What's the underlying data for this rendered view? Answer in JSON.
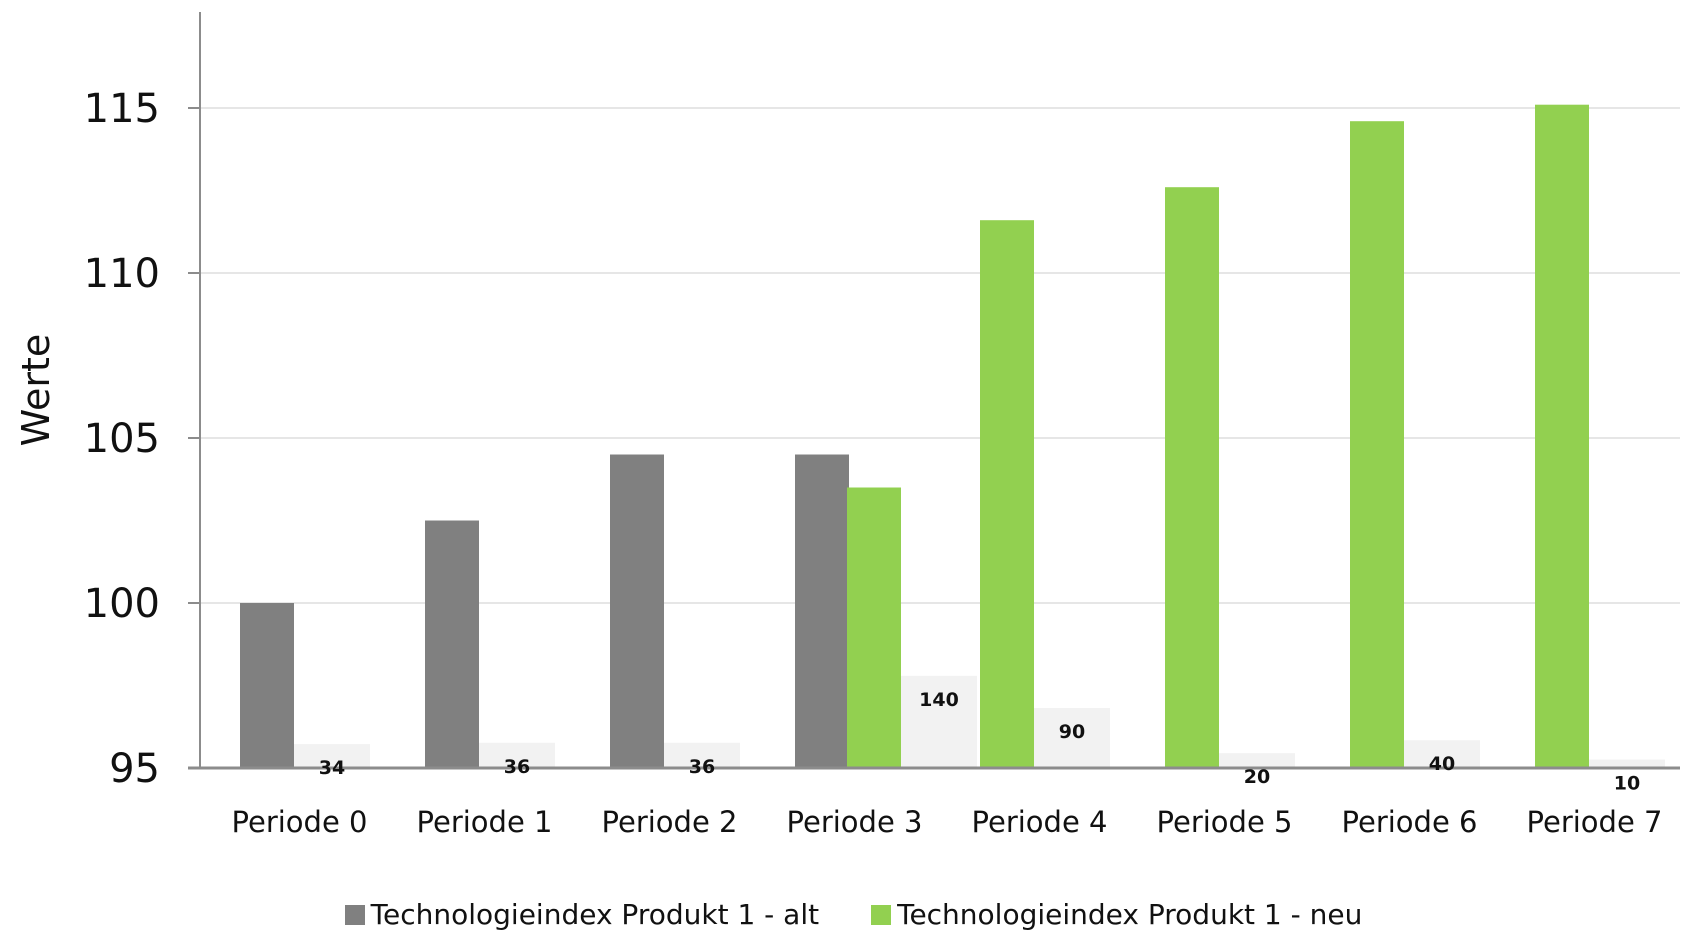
{
  "chart_data": {
    "type": "bar",
    "title": "",
    "xlabel": "",
    "ylabel": "Werte",
    "ylim": [
      95,
      117
    ],
    "yticks": [
      95,
      100,
      105,
      110,
      115
    ],
    "grid": true,
    "legend_position": "bottom",
    "categories": [
      "Periode 0",
      "Periode 1",
      "Periode 2",
      "Periode 3",
      "Periode 4",
      "Periode 5",
      "Periode 6",
      "Periode 7"
    ],
    "series": [
      {
        "name": "Technologieindex Produkt 1 - alt",
        "color": "#808080",
        "values": [
          100,
          102.5,
          104.5,
          104.5,
          null,
          null,
          null,
          null
        ]
      },
      {
        "name": "Technologieindex Produkt 1 - neu",
        "color": "#92d050",
        "values": [
          null,
          null,
          null,
          103.5,
          111.6,
          112.6,
          114.6,
          115.1
        ]
      }
    ],
    "secondary_bars": {
      "color": "#f2f2f2",
      "values": [
        34,
        36,
        36,
        140,
        90,
        20,
        40,
        10
      ],
      "labels": [
        "34",
        "36",
        "36",
        "140",
        "90",
        "20",
        "40",
        "10"
      ]
    }
  }
}
